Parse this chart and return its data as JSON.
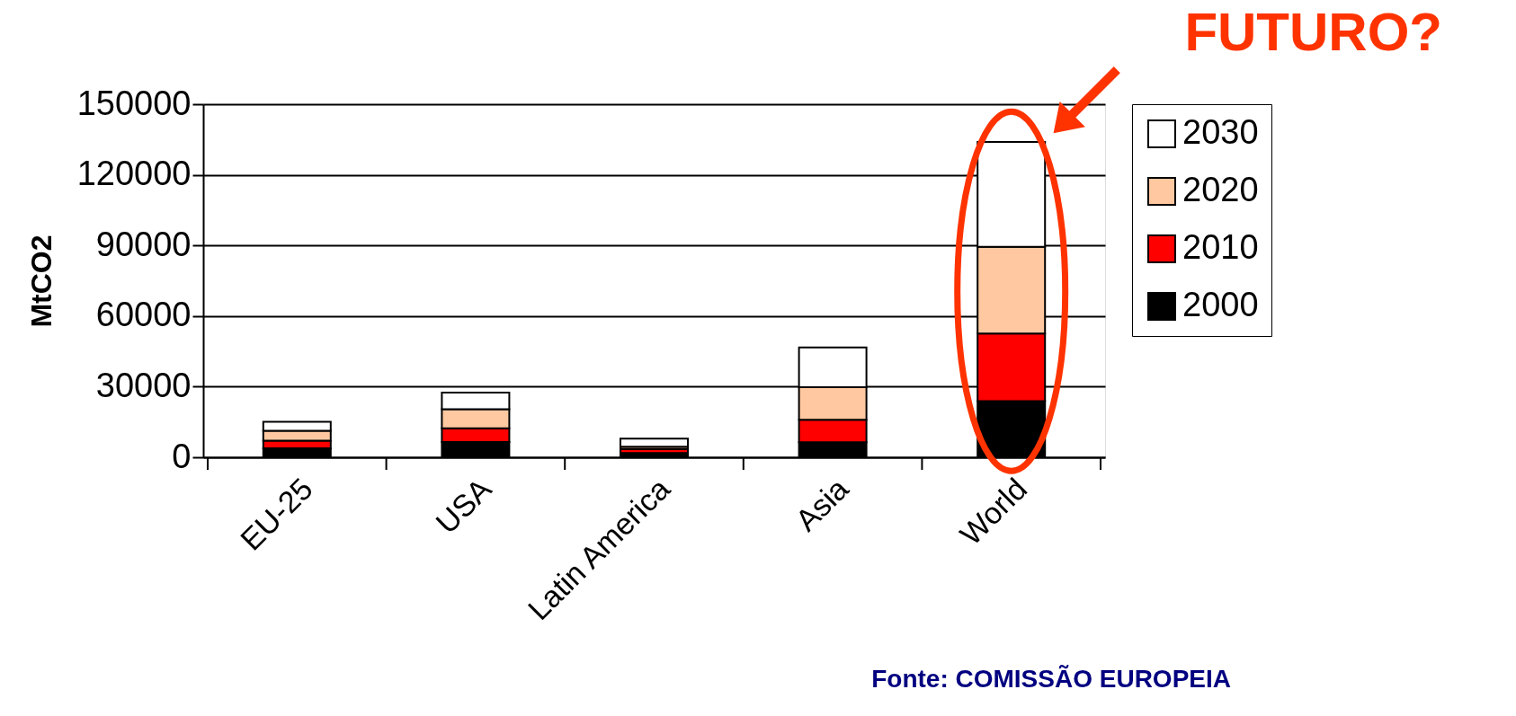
{
  "chart_data": {
    "type": "bar",
    "stacked": true,
    "title": "FUTURO?",
    "ylabel": "MtCO2",
    "categories": [
      "EU-25",
      "USA",
      "Latin America",
      "Asia",
      "World"
    ],
    "series": [
      {
        "name": "2000",
        "color": "#000000",
        "values": [
          3800,
          6500,
          1800,
          6400,
          23900
        ]
      },
      {
        "name": "2010",
        "color": "#ff0000",
        "values": [
          3300,
          5800,
          1700,
          9500,
          28700
        ]
      },
      {
        "name": "2020",
        "color": "#ffc8a0",
        "values": [
          4200,
          8100,
          1000,
          13900,
          36800
        ]
      },
      {
        "name": "2030",
        "color": "#ffffff",
        "values": [
          3800,
          7100,
          3400,
          16900,
          44600
        ]
      }
    ],
    "ylim": [
      0,
      150000
    ],
    "yticks": [
      0,
      30000,
      60000,
      90000,
      120000,
      150000
    ],
    "grid": "y",
    "legend": "right",
    "annotations": [
      "Fonte: COMISSÃO EUROPEIA"
    ]
  }
}
